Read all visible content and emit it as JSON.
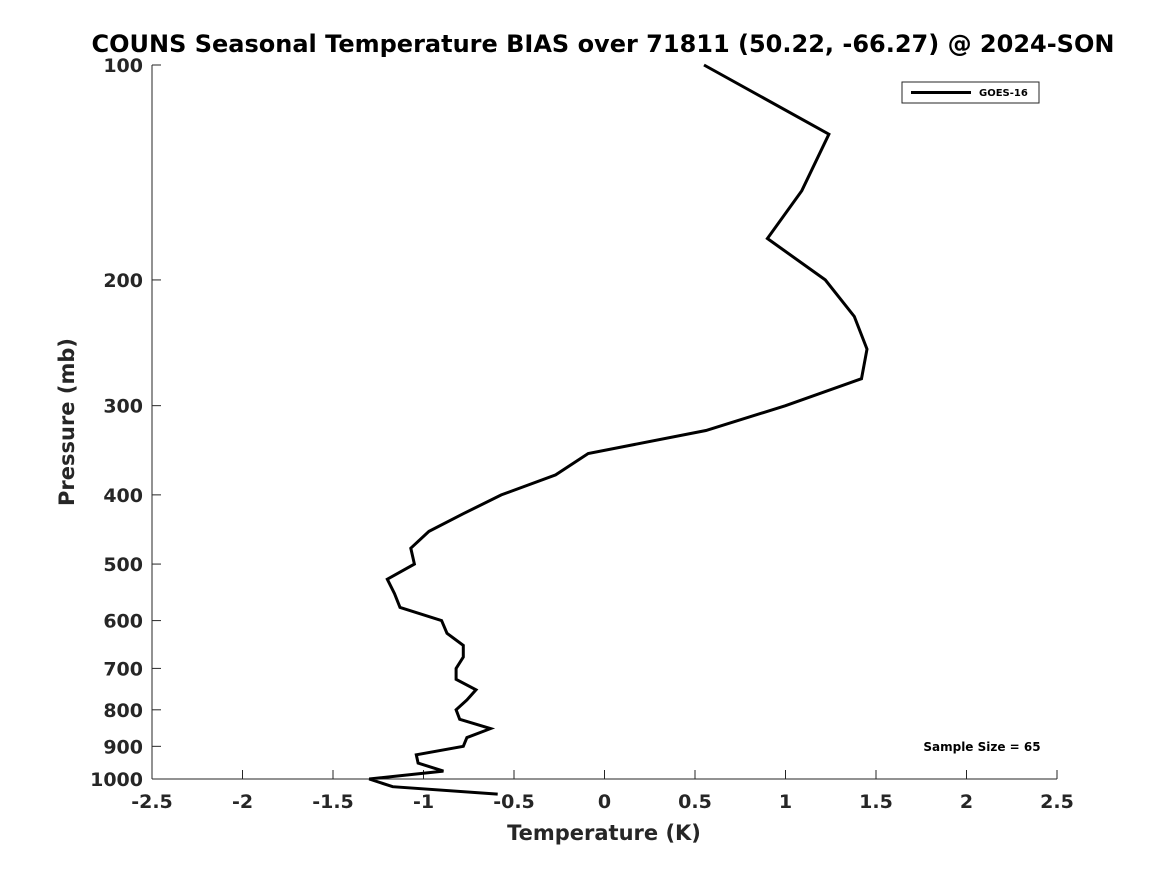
{
  "chart_data": {
    "type": "line",
    "title": "COUNS Seasonal Temperature BIAS over 71811 (50.22, -66.27) @ 2024-SON",
    "xlabel": "Temperature (K)",
    "ylabel": "Pressure (mb)",
    "xlim": [
      -2.5,
      2.5
    ],
    "ylim": [
      100,
      1000
    ],
    "yscale": "log",
    "y_reversed": true,
    "xticks": [
      -2.5,
      -2,
      -1.5,
      -1,
      -0.5,
      0,
      0.5,
      1,
      1.5,
      2,
      2.5
    ],
    "xtick_labels": [
      "-2.5",
      "-2",
      "-1.5",
      "-1",
      "-0.5",
      "0",
      "0.5",
      "1",
      "1.5",
      "2",
      "2.5"
    ],
    "yticks": [
      100,
      200,
      300,
      400,
      500,
      600,
      700,
      800,
      900,
      1000
    ],
    "ytick_labels": [
      "100",
      "200",
      "300",
      "400",
      "500",
      "600",
      "700",
      "800",
      "900",
      "1000"
    ],
    "grid": false,
    "legend_position": "top-right",
    "series": [
      {
        "name": "GOES-16",
        "color": "#000000",
        "points": [
          [
            0.55,
            100
          ],
          [
            1.24,
            125
          ],
          [
            1.09,
            150
          ],
          [
            0.9,
            175
          ],
          [
            1.22,
            200
          ],
          [
            1.38,
            225
          ],
          [
            1.45,
            250
          ],
          [
            1.42,
            275
          ],
          [
            1.0,
            300
          ],
          [
            0.56,
            325
          ],
          [
            -0.09,
            350
          ],
          [
            -0.27,
            375
          ],
          [
            -0.57,
            400
          ],
          [
            -0.78,
            425
          ],
          [
            -0.97,
            450
          ],
          [
            -1.07,
            475
          ],
          [
            -1.05,
            500
          ],
          [
            -1.2,
            525
          ],
          [
            -1.16,
            550
          ],
          [
            -1.13,
            575
          ],
          [
            -0.9,
            600
          ],
          [
            -0.87,
            625
          ],
          [
            -0.78,
            650
          ],
          [
            -0.78,
            675
          ],
          [
            -0.82,
            700
          ],
          [
            -0.82,
            725
          ],
          [
            -0.71,
            750
          ],
          [
            -0.76,
            775
          ],
          [
            -0.82,
            800
          ],
          [
            -0.8,
            825
          ],
          [
            -0.63,
            850
          ],
          [
            -0.76,
            875
          ],
          [
            -0.78,
            900
          ],
          [
            -1.04,
            925
          ],
          [
            -1.03,
            950
          ],
          [
            -0.89,
            975
          ],
          [
            -1.3,
            1000
          ],
          [
            -1.17,
            1025
          ],
          [
            -0.59,
            1050
          ]
        ]
      }
    ],
    "annotation": "Sample Size = 65"
  }
}
